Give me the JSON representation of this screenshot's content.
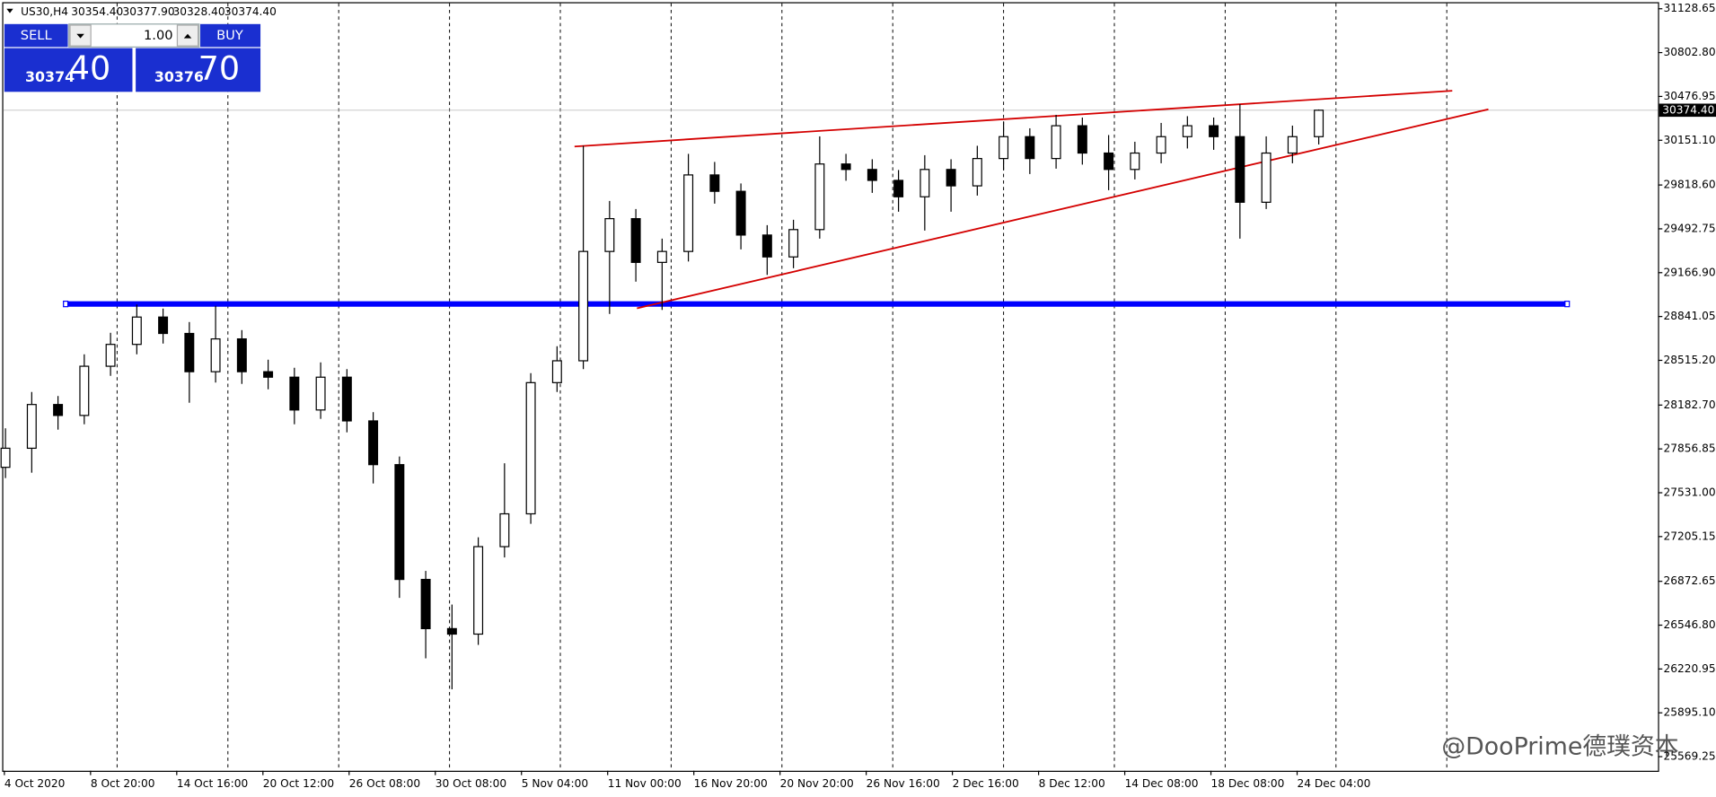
{
  "chart_data": {
    "type": "candlestick",
    "symbol": "US30,H4",
    "header_values": [
      "30354.40",
      "30377.90",
      "30328.40",
      "30374.40"
    ],
    "panel": {
      "sell": "SELL",
      "buy": "BUY",
      "lots": "1.00",
      "sell_price_main": "30374",
      "sell_price_pips": "40",
      "buy_price_main": "30376",
      "buy_price_pips": "70"
    },
    "watermark": "@DooPrime德璞资本",
    "categories": [
      "4 Oct 2020",
      "8 Oct 20:00",
      "14 Oct 16:00",
      "20 Oct 12:00",
      "26 Oct 08:00",
      "30 Oct 08:00",
      "5 Nov 04:00",
      "11 Nov 00:00",
      "16 Nov 20:00",
      "20 Nov 20:00",
      "26 Nov 16:00",
      "2 Dec 16:00",
      "8 Dec 12:00",
      "14 Dec 08:00",
      "18 Dec 08:00",
      "24 Dec 04:00"
    ],
    "candles": {
      "open": [
        27720,
        27861.8,
        28186.9,
        28105.6,
        28471.3,
        28633.8,
        28837,
        28715.1,
        28430.7,
        28674.5,
        28430.7,
        28390,
        28146.2,
        28390,
        28065,
        27739.9,
        26886.6,
        26520.9,
        26480.3,
        27130.4,
        27374.2,
        28349.4,
        28511.9,
        29324.6,
        29568.4,
        29243.3,
        29324.6,
        29893.4,
        29771.5,
        29446.5,
        29283.9,
        29487.1,
        29974.7,
        29934.1,
        29852.8,
        29730.9,
        29934.1,
        29812.2,
        30015.3,
        30177.9,
        30015.3,
        30259.1,
        30056,
        29934.1,
        30056,
        30177.9,
        30259.1,
        30177.9,
        29690.3,
        30056,
        30177.9
      ],
      "high": [
        28010,
        28280,
        28250,
        28560,
        28720,
        28930,
        28900,
        28800,
        28920,
        28740,
        28520,
        28460,
        28500,
        28450,
        28130,
        27800,
        26950,
        26700,
        27200,
        27750,
        28420,
        28620,
        30110,
        29700,
        29640,
        29420,
        30050,
        29990,
        29830,
        29520,
        29560,
        30180,
        30050,
        30010,
        29930,
        30040,
        30010,
        30110,
        30290,
        30240,
        30340,
        30320,
        30190,
        30140,
        30280,
        30330,
        30320,
        30420,
        30180,
        30260,
        30380
      ],
      "low": [
        27640,
        27680,
        28000,
        28040,
        28400,
        28560,
        28640,
        28200,
        28350,
        28340,
        28300,
        28040,
        28080,
        27980,
        27600,
        26750,
        26300,
        26070,
        26400,
        27050,
        27300,
        28280,
        28450,
        28860,
        29100,
        28890,
        29250,
        29680,
        29340,
        29150,
        29200,
        29420,
        29850,
        29760,
        29620,
        29480,
        29620,
        29740,
        29930,
        29900,
        29940,
        29970,
        29780,
        29860,
        29980,
        30090,
        30080,
        29420,
        29640,
        29980,
        30120
      ],
      "close": [
        27861.8,
        28186.9,
        28105.6,
        28471.3,
        28633.8,
        28837,
        28715.1,
        28430.7,
        28674.5,
        28430.7,
        28390,
        28146.2,
        28390,
        28065,
        27739.9,
        26886.6,
        26520.9,
        26480.3,
        27130.4,
        27374.2,
        28349.4,
        28511.9,
        29324.6,
        29568.4,
        29243.3,
        29324.6,
        29893.4,
        29771.5,
        29446.5,
        29283.9,
        29487.1,
        29974.7,
        29934.1,
        29852.8,
        29730.9,
        29934.1,
        29812.2,
        30015.3,
        30177.9,
        30015.3,
        30259.1,
        30056,
        29934.1,
        30056,
        30177.9,
        30259.1,
        30177.9,
        29690.3,
        30056,
        30177.9,
        30374.4
      ]
    },
    "current_price": {
      "value": 30374.4,
      "label": "30374.40"
    },
    "horizontal_line": {
      "price": 28934.4,
      "color": "#0000ff"
    },
    "trendlines": [
      {
        "prices": [
          30104.7,
          30519.1
        ],
        "color": "#d40000"
      },
      {
        "prices": [
          28902,
          30381
        ],
        "color": "#d40000"
      }
    ],
    "ylim": [
      25464.4,
      31193.7
    ],
    "yticks": [
      31128.65,
      {
        "value": 30802.8,
        "label": "30802.80"
      },
      30476.95,
      {
        "value": 30151.1,
        "label": "30151.10"
      },
      {
        "value": 29818.6,
        "label": "29818.60"
      },
      29492.75,
      {
        "value": 29166.9,
        "label": "29166.90"
      },
      28841.05,
      {
        "value": 28515.2,
        "label": "28515.20"
      },
      {
        "value": 28182.7,
        "label": "28182.70"
      },
      27856.85,
      {
        "value": 27531,
        "label": "27531.00"
      },
      27205.15,
      26872.65,
      {
        "value": 26546.8,
        "label": "26546.80"
      },
      26220.95,
      {
        "value": 25895.1,
        "label": "25895.10"
      },
      25569.25
    ],
    "up_color": "#ffffff",
    "down_color": "#000000"
  }
}
